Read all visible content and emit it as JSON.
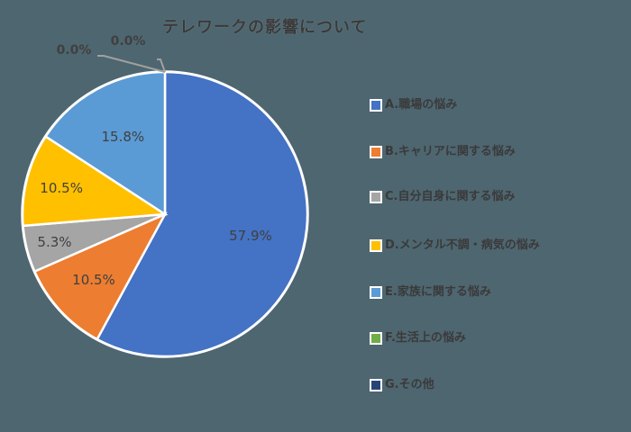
{
  "chart_data": {
    "type": "pie",
    "title": "テレワークの影響について",
    "categories": [
      "A.職場の悩み",
      "B.キャリアに関する悩み",
      "C.自分自身に関する悩み",
      "D.メンタル不調・病気の悩み",
      "E.家族に関する悩み",
      "F.生活上の悩み",
      "G.その他"
    ],
    "values": [
      57.9,
      10.5,
      5.3,
      10.5,
      15.8,
      0.0,
      0.0
    ],
    "labels": [
      "57.9%",
      "10.5%",
      "5.3%",
      "10.5%",
      "15.8%",
      "0.0%",
      "0.0%"
    ],
    "colors": [
      "#4472c4",
      "#ed7d31",
      "#a5a5a5",
      "#ffc000",
      "#5b9bd5",
      "#70ad47",
      "#264478"
    ],
    "legend_position": "right",
    "start_angle_deg": 0,
    "direction": "clockwise"
  },
  "legend": [
    {
      "label": "A.職場の悩み",
      "color": "#4472c4"
    },
    {
      "label": "B.キャリアに関する悩み",
      "color": "#ed7d31"
    },
    {
      "label": "C.自分自身に関する悩み",
      "color": "#a5a5a5"
    },
    {
      "label": "D.メンタル不調・病気の悩み",
      "color": "#ffc000"
    },
    {
      "label": "E.家族に関する悩み",
      "color": "#5b9bd5"
    },
    {
      "label": "F.生活上の悩み",
      "color": "#70ad47"
    },
    {
      "label": "G.その他",
      "color": "#264478"
    }
  ]
}
